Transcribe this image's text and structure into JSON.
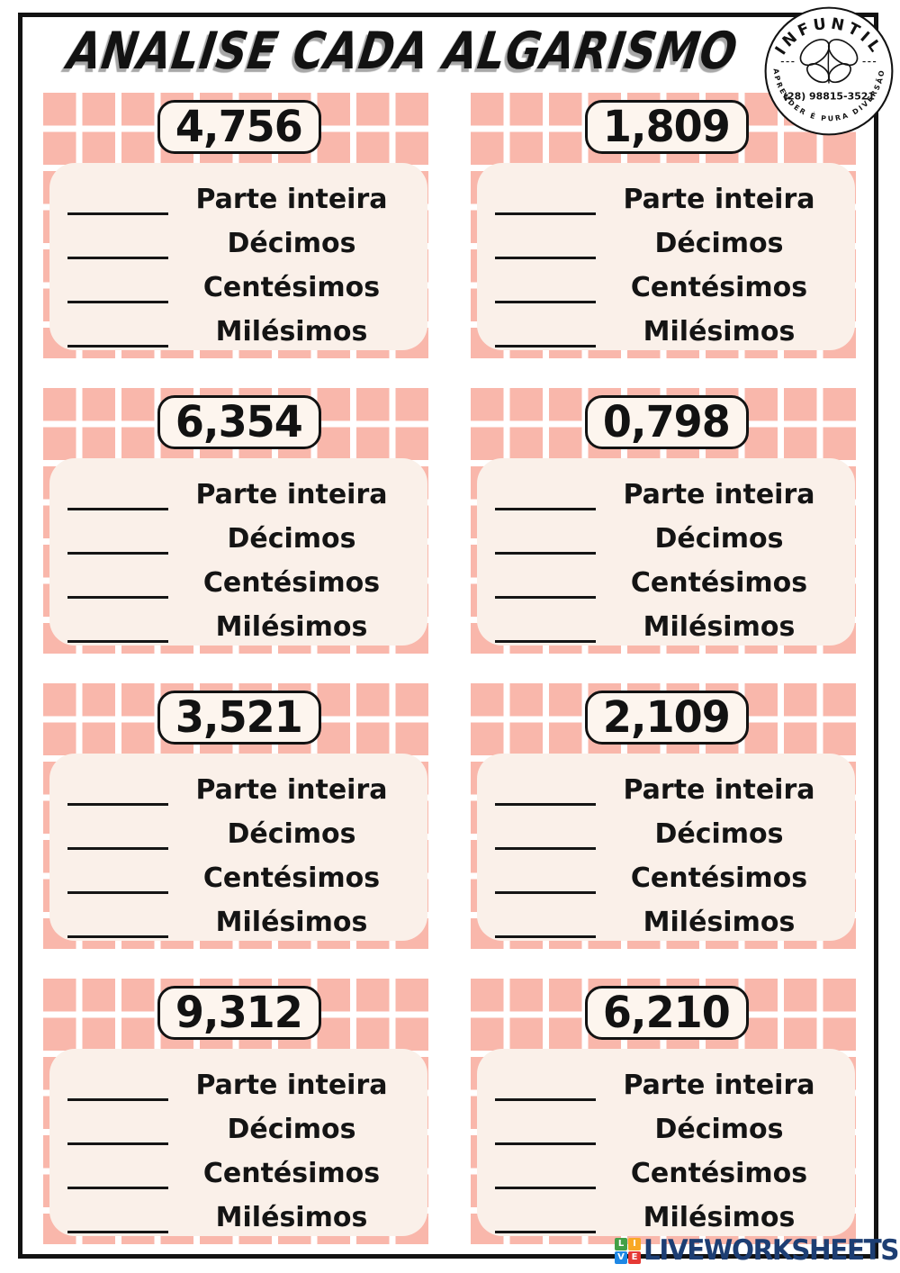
{
  "page": {
    "title": "ANALISE CADA ALGARISMO"
  },
  "logo": {
    "brand": "INFUNTIL",
    "phone": "(28) 98815-3521",
    "tagline": "APRENDER É PURA DIVERSÃO"
  },
  "labels": [
    "Parte inteira",
    "Décimos",
    "Centésimos",
    "Milésimos"
  ],
  "cards": [
    {
      "number": "4,756"
    },
    {
      "number": "1,809"
    },
    {
      "number": "6,354"
    },
    {
      "number": "0,798"
    },
    {
      "number": "3,521"
    },
    {
      "number": "2,109"
    },
    {
      "number": "9,312"
    },
    {
      "number": "6,210"
    }
  ],
  "watermark": {
    "text": "LIVEWORKSHEETS",
    "tiles": [
      {
        "letter": "L",
        "color": "#43a047"
      },
      {
        "letter": "I",
        "color": "#f9a825"
      },
      {
        "letter": "V",
        "color": "#1e88e5"
      },
      {
        "letter": "E",
        "color": "#e53935"
      }
    ]
  },
  "colors": {
    "tile_pink": "#f9b7ab",
    "panel_cream": "#faf0e9",
    "badge_cream": "#fdf5ee",
    "ink_black": "#121212",
    "watermark_navy": "#1d3e73"
  }
}
